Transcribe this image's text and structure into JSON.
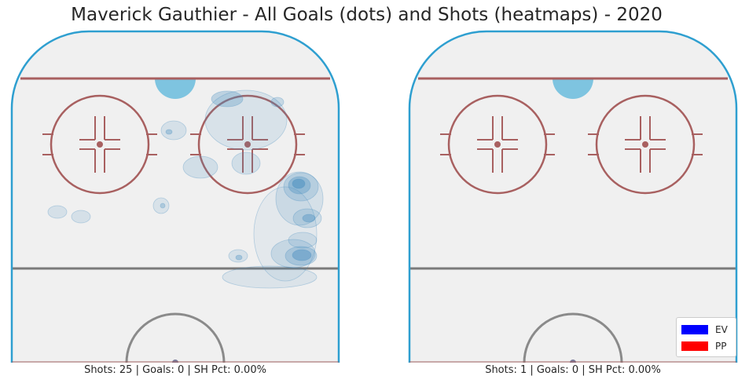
{
  "chart_data": {
    "type": "heatmap",
    "title": "Maverick Gauthier - All Goals (dots) and Shots (heatmaps) - 2020",
    "panels": [
      {
        "caption": "Shots: 25 | Goals: 0 | SH Pct: 0.00%",
        "shots": 25,
        "goals": 0,
        "sh_pct": "0.00%",
        "goal_dots": [],
        "heatmap": "shot density concentrated along the right boards and slot, with scattered low-density areas near the left faceoff circle"
      },
      {
        "caption": "Shots: 1 | Goals: 0 | SH Pct: 0.00%",
        "shots": 1,
        "goals": 0,
        "sh_pct": "0.00%",
        "goal_dots": [],
        "heatmap": "none"
      }
    ],
    "legend": {
      "placement": "bottom-right",
      "entries": [
        {
          "label": "EV",
          "color": "#0000ff"
        },
        {
          "label": "PP",
          "color": "#ff0000"
        }
      ]
    },
    "colors": {
      "ice": "#f0f0f0",
      "boards": "#2e9fd0",
      "red_line": "#a86060",
      "blue_line_gray": "#7a7a7a",
      "crease": "#7ec4e0",
      "heat": "#4a8fc0"
    }
  }
}
